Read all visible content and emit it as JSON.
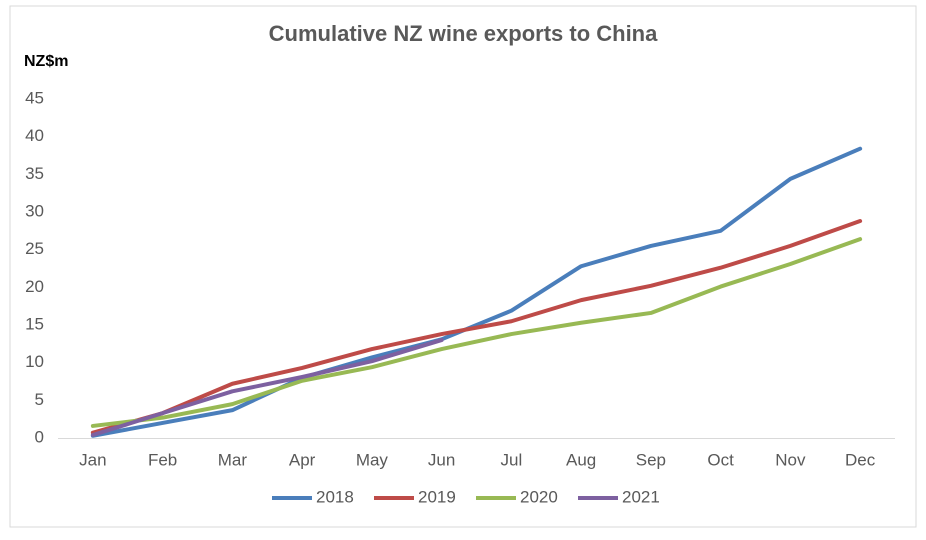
{
  "chart_data": {
    "type": "line",
    "title": "Cumulative NZ wine exports to China",
    "y_label": "NZ$m",
    "categories": [
      "Jan",
      "Feb",
      "Mar",
      "Apr",
      "May",
      "Jun",
      "Jul",
      "Aug",
      "Sep",
      "Oct",
      "Nov",
      "Dec"
    ],
    "series": [
      {
        "name": "2018",
        "color": "#4a7ebb",
        "values": [
          0.3,
          2.0,
          3.7,
          8.0,
          10.7,
          13.1,
          16.9,
          22.8,
          25.5,
          27.5,
          34.4,
          38.4
        ]
      },
      {
        "name": "2019",
        "color": "#be4b48",
        "values": [
          0.7,
          3.3,
          7.2,
          9.3,
          11.8,
          13.8,
          15.5,
          18.3,
          20.2,
          22.6,
          25.5,
          28.8
        ]
      },
      {
        "name": "2020",
        "color": "#98b954",
        "values": [
          1.6,
          2.7,
          4.5,
          7.6,
          9.4,
          11.8,
          13.8,
          15.3,
          16.6,
          20.1,
          23.1,
          26.4
        ]
      },
      {
        "name": "2021",
        "color": "#7d60a0",
        "values": [
          0.4,
          3.3,
          6.2,
          8.1,
          10.2,
          13.0,
          null,
          null,
          null,
          null,
          null,
          null
        ]
      }
    ],
    "ylim": [
      0,
      45
    ],
    "yticks": [
      0,
      5,
      10,
      15,
      20,
      25,
      30,
      35,
      40,
      45
    ],
    "grid": false,
    "legend": "bottom"
  }
}
